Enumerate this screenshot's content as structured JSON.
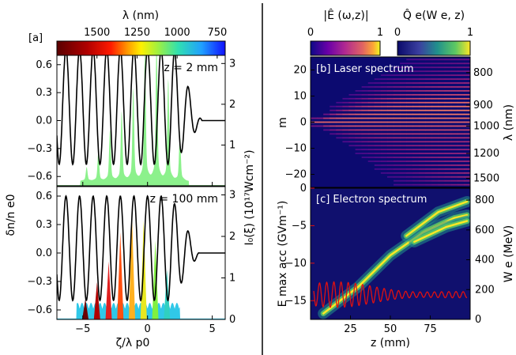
{
  "colors": {
    "plasma_wave": "#000000",
    "accel_field": "#e01010",
    "annotation_text": "#ffffff",
    "spectrum_fill": "#80f080"
  },
  "chart_data": [
    {
      "type": "line",
      "panel_label": "[a]",
      "annotation": "z = 2 mm",
      "xlim": [
        -7,
        6
      ],
      "ylim": [
        -0.7,
        0.7
      ],
      "y2lim": [
        0,
        3.2
      ],
      "x_ticks": [
        -5,
        0,
        5
      ],
      "y_ticks": [
        0.6,
        0.3,
        0.0,
        -0.3,
        -0.6
      ],
      "y_tick_labels": [
        "0.6",
        "0.3",
        "0.0",
        "−0.3",
        "−0.6"
      ],
      "y2_ticks": [
        1,
        2,
        3
      ],
      "series": [
        {
          "kind": "density_perturbation",
          "amplitude": 0.62,
          "offset": 0.15,
          "wavelength_lambda_p0": 1.05,
          "decay_start": 2.0,
          "decay_end": 4.2
        },
        {
          "kind": "intensity_envelope",
          "peaks_x": [
            -4.7,
            -3.8,
            -2.9,
            -2.0,
            -1.1,
            -0.2,
            0.7,
            1.6,
            2.5
          ],
          "peaks_y": [
            0.3,
            0.6,
            1.1,
            1.5,
            2.0,
            2.8,
            3.05,
            2.2,
            1.0
          ]
        }
      ],
      "colorbar": {
        "label": "λ (nm)",
        "ticks": [
          "1500",
          "1250",
          "1000",
          "750"
        ],
        "tick_values": [
          1500,
          1250,
          1000,
          750
        ],
        "range_nm": [
          1750,
          700
        ]
      }
    },
    {
      "type": "line",
      "annotation": "z = 100 mm",
      "xlim": [
        -7,
        6
      ],
      "ylim": [
        -0.7,
        0.7
      ],
      "y2lim": [
        0,
        3.2
      ],
      "x_ticks": [
        -5,
        0,
        5
      ],
      "x_tick_labels": [
        "−5",
        "0",
        "5"
      ],
      "y_ticks": [
        0.6,
        0.3,
        0.0,
        -0.3,
        -0.6
      ],
      "y_tick_labels": [
        "0.6",
        "0.3",
        "0.0",
        "−0.3",
        "−0.6"
      ],
      "y2_ticks": [
        0,
        1,
        2,
        3
      ],
      "series": [
        {
          "kind": "density_perturbation",
          "amplitude": 0.55,
          "offset": 0.05,
          "wavelength_lambda_p0": 1.05,
          "decay_start": 1.8,
          "decay_end": 4.0
        },
        {
          "kind": "spectral_spikes",
          "peaks_x": [
            -4.8,
            -3.9,
            -3.0,
            -2.1,
            -1.2,
            -0.3,
            0.6,
            1.5
          ],
          "peaks_y": [
            0.5,
            0.9,
            1.4,
            2.1,
            2.5,
            2.4,
            1.9,
            1.2
          ],
          "peak_colors": [
            "#6b0000",
            "#b00000",
            "#e02020",
            "#ff5010",
            "#ffb020",
            "#e8e820",
            "#80f040",
            "#30d0c0"
          ]
        }
      ],
      "xlabel": "ζ/λ p0",
      "ylabel": "δn/n e0",
      "y2label": "I₀(ξ) (10¹⁷Wcm⁻²)"
    },
    {
      "type": "heatmap",
      "panel_label": "[b] Laser spectrum",
      "xlim": [
        0,
        100
      ],
      "ylim": [
        -25,
        25
      ],
      "y_ticks": [
        20,
        10,
        0,
        -10,
        -20
      ],
      "y_tick_labels": [
        "20",
        "10",
        "0",
        "−10",
        "−20"
      ],
      "ylabel": "m",
      "y2label": "λ (nm)",
      "y2_ticks": [
        "800",
        "900",
        "1000",
        "1200",
        "1500"
      ],
      "colorbar": {
        "label": "|Ê (ω,z)|",
        "ticks": [
          "0",
          "1"
        ],
        "range": [
          0,
          1
        ]
      }
    },
    {
      "type": "heatmap",
      "panel_label": "[c] Electron spectrum",
      "xlim": [
        0,
        100
      ],
      "ylim": [
        -17.5,
        0
      ],
      "x_ticks": [
        25,
        50,
        75
      ],
      "y_ticks": [
        0,
        -5,
        -10,
        -15
      ],
      "y_tick_labels": [
        "0",
        "−5",
        "−10",
        "−15"
      ],
      "xlabel": "z (mm)",
      "ylabel": "E max acc (GVm⁻¹)",
      "y2label": "W e (MeV)",
      "y2lim": [
        0,
        880
      ],
      "y2_ticks": [
        "800",
        "600",
        "400",
        "200",
        "0"
      ],
      "colorbar": {
        "label": "Q̂ e(W e, z)",
        "ticks": [
          "0",
          "1"
        ],
        "range": [
          0,
          1
        ]
      },
      "accel_field": {
        "z_start": 2,
        "z_end": 98,
        "period_mm": 4.5,
        "mean_gvpm": -14.2,
        "amplitude_start": 2.0,
        "amplitude_end": 0.4
      },
      "energy_branches_mev": [
        {
          "z": [
            8,
            30,
            50,
            70,
            90,
            98
          ],
          "W": [
            40,
            220,
            430,
            580,
            680,
            700
          ]
        },
        {
          "z": [
            60,
            80,
            98
          ],
          "W": [
            560,
            720,
            790
          ]
        },
        {
          "z": [
            65,
            85,
            98
          ],
          "W": [
            520,
            620,
            660
          ]
        }
      ]
    }
  ]
}
